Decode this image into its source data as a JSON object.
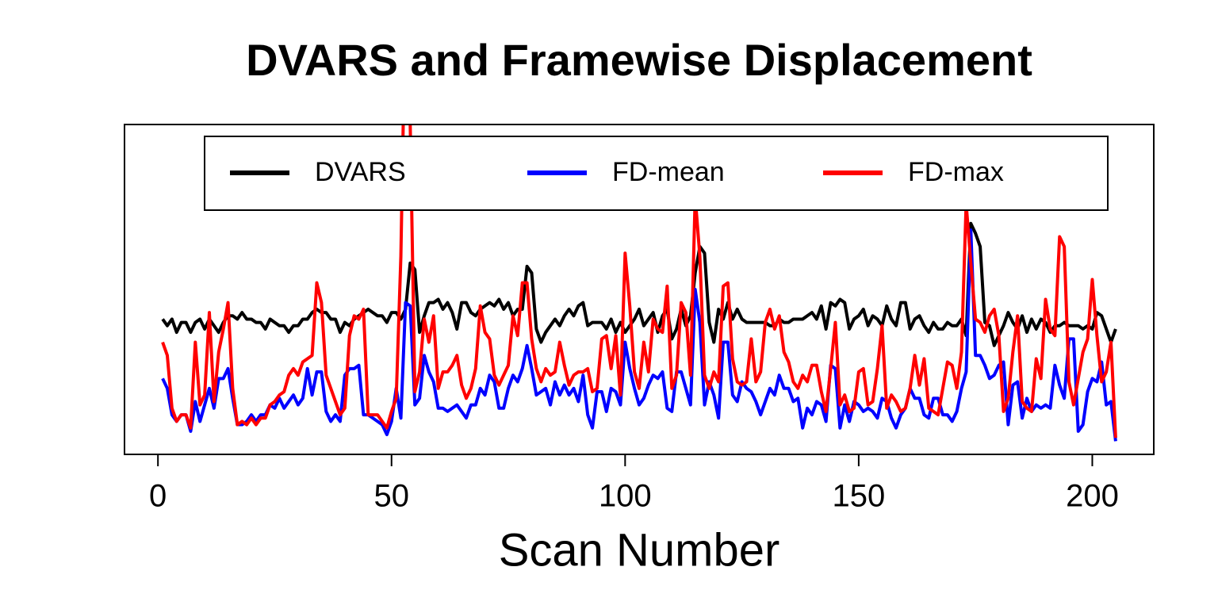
{
  "chart_data": {
    "type": "line",
    "title": "DVARS and Framewise Displacement",
    "x_label": "Scan Number",
    "x": [
      1,
      2,
      3,
      4,
      5,
      6,
      7,
      8,
      9,
      10,
      11,
      12,
      13,
      14,
      15,
      16,
      17,
      18,
      19,
      20,
      21,
      22,
      23,
      24,
      25,
      26,
      27,
      28,
      29,
      30,
      31,
      32,
      33,
      34,
      35,
      36,
      37,
      38,
      39,
      40,
      41,
      42,
      43,
      44,
      45,
      46,
      47,
      48,
      49,
      50,
      51,
      52,
      53,
      54,
      55,
      56,
      57,
      58,
      59,
      60,
      61,
      62,
      63,
      64,
      65,
      66,
      67,
      68,
      69,
      70,
      71,
      72,
      73,
      74,
      75,
      76,
      77,
      78,
      79,
      80,
      81,
      82,
      83,
      84,
      85,
      86,
      87,
      88,
      89,
      90,
      91,
      92,
      93,
      94,
      95,
      96,
      97,
      98,
      99,
      100,
      101,
      102,
      103,
      104,
      105,
      106,
      107,
      108,
      109,
      110,
      111,
      112,
      113,
      114,
      115,
      116,
      117,
      118,
      119,
      120,
      121,
      122,
      123,
      124,
      125,
      126,
      127,
      128,
      129,
      130,
      131,
      132,
      133,
      134,
      135,
      136,
      137,
      138,
      139,
      140,
      141,
      142,
      143,
      144,
      145,
      146,
      147,
      148,
      149,
      150,
      151,
      152,
      153,
      154,
      155,
      156,
      157,
      158,
      159,
      160,
      161,
      162,
      163,
      164,
      165,
      166,
      167,
      168,
      169,
      170,
      171,
      172,
      173,
      174,
      175,
      176,
      177,
      178,
      179,
      180,
      181,
      182,
      183,
      184,
      185,
      186,
      187,
      188,
      189,
      190,
      191,
      192,
      193,
      194,
      195,
      196,
      197,
      198,
      199,
      200,
      201,
      202,
      203,
      204,
      205
    ],
    "series": [
      {
        "name": "DVARS",
        "color": "#000000",
        "values": [
          41,
          39,
          41,
          37,
          40,
          40,
          37,
          40,
          41,
          38,
          41,
          39,
          37,
          40,
          42,
          42,
          41,
          43,
          41,
          41,
          40,
          40,
          38,
          41,
          40,
          39,
          39,
          37,
          39,
          39,
          41,
          41,
          43,
          44,
          43,
          43,
          41,
          41,
          37,
          40,
          39,
          41,
          42,
          43,
          44,
          43,
          42,
          42,
          40,
          43,
          43,
          41,
          44,
          58,
          56,
          37,
          42,
          46,
          46,
          47,
          44,
          46,
          43,
          38,
          46,
          46,
          43,
          42,
          44,
          45,
          46,
          45,
          47,
          44,
          46,
          42,
          44,
          44,
          57,
          55,
          38,
          34,
          37,
          39,
          41,
          39,
          42,
          44,
          42,
          45,
          46,
          39,
          40,
          40,
          40,
          38,
          41,
          37,
          40,
          37,
          39,
          41,
          44,
          39,
          41,
          43,
          37,
          42,
          44,
          35,
          38,
          44,
          39,
          42,
          55,
          63,
          61,
          40,
          34,
          44,
          41,
          46,
          41,
          44,
          41,
          40,
          40,
          40,
          40,
          40,
          39,
          39,
          41,
          40,
          40,
          41,
          41,
          41,
          42,
          43,
          41,
          45,
          38,
          46,
          45,
          47,
          46,
          38,
          41,
          42,
          44,
          39,
          42,
          41,
          39,
          45,
          41,
          39,
          46,
          46,
          38,
          41,
          42,
          39,
          37,
          40,
          38,
          38,
          40,
          39,
          39,
          41,
          36,
          70,
          67,
          63,
          40,
          39,
          33,
          36,
          39,
          43,
          40,
          38,
          42,
          37,
          41,
          38,
          41,
          40,
          37,
          39,
          39,
          40,
          39,
          39,
          39,
          38,
          39,
          38,
          43,
          42,
          38,
          34,
          38
        ]
      },
      {
        "name": "FD-mean",
        "color": "#0000ff",
        "values": [
          23,
          20,
          12,
          10,
          12,
          12,
          7,
          16,
          10,
          15,
          20,
          14,
          23,
          23,
          26,
          17,
          9,
          9,
          10,
          12,
          10,
          12,
          12,
          15,
          14,
          17,
          14,
          16,
          18,
          15,
          17,
          26,
          18,
          25,
          25,
          13,
          10,
          12,
          10,
          24,
          26,
          26,
          27,
          12,
          12,
          11,
          10,
          9,
          6,
          10,
          20,
          11,
          46,
          45,
          15,
          17,
          30,
          25,
          22,
          14,
          14,
          13,
          14,
          15,
          13,
          11,
          15,
          15,
          20,
          18,
          24,
          22,
          14,
          14,
          20,
          24,
          22,
          26,
          33,
          26,
          18,
          19,
          20,
          15,
          22,
          18,
          21,
          18,
          20,
          16,
          24,
          12,
          8,
          19,
          19,
          13,
          20,
          19,
          15,
          34,
          26,
          20,
          15,
          17,
          21,
          24,
          23,
          25,
          14,
          13,
          25,
          25,
          20,
          15,
          50,
          40,
          15,
          22,
          18,
          11,
          34,
          34,
          18,
          16,
          22,
          20,
          19,
          16,
          12,
          16,
          20,
          18,
          24,
          20,
          20,
          16,
          17,
          8,
          14,
          12,
          16,
          15,
          10,
          27,
          26,
          8,
          15,
          10,
          16,
          15,
          13,
          14,
          13,
          11,
          17,
          16,
          11,
          8,
          12,
          14,
          20,
          17,
          17,
          12,
          11,
          17,
          17,
          12,
          12,
          10,
          13,
          20,
          25,
          68,
          30,
          30,
          27,
          23,
          24,
          27,
          28,
          9,
          21,
          22,
          11,
          17,
          13,
          15,
          14,
          15,
          14,
          27,
          21,
          17,
          35,
          35,
          7,
          9,
          19,
          23,
          22,
          28,
          15,
          16,
          4
        ]
      },
      {
        "name": "FD-max",
        "color": "#ff0000",
        "values": [
          34,
          30,
          14,
          10,
          12,
          12,
          8,
          34,
          15,
          18,
          43,
          16,
          31,
          38,
          46,
          20,
          9,
          10,
          9,
          11,
          9,
          11,
          11,
          15,
          16,
          18,
          19,
          24,
          26,
          24,
          28,
          29,
          30,
          52,
          46,
          24,
          20,
          16,
          12,
          14,
          36,
          42,
          41,
          44,
          12,
          12,
          12,
          10,
          8,
          13,
          17,
          60,
          140,
          100,
          19,
          25,
          41,
          34,
          42,
          20,
          25,
          25,
          27,
          30,
          21,
          17,
          20,
          26,
          45,
          37,
          35,
          24,
          21,
          24,
          27,
          42,
          36,
          52,
          52,
          35,
          26,
          22,
          26,
          24,
          25,
          34,
          27,
          21,
          24,
          25,
          25,
          26,
          19,
          20,
          35,
          36,
          26,
          36,
          18,
          61,
          45,
          25,
          20,
          34,
          25,
          41,
          38,
          37,
          51,
          20,
          24,
          46,
          43,
          24,
          78,
          60,
          24,
          20,
          25,
          22,
          51,
          52,
          29,
          22,
          21,
          22,
          35,
          22,
          25,
          40,
          44,
          38,
          42,
          31,
          28,
          22,
          20,
          24,
          22,
          27,
          27,
          19,
          13,
          26,
          40,
          15,
          18,
          13,
          14,
          25,
          26,
          15,
          16,
          26,
          39,
          14,
          18,
          16,
          13,
          14,
          20,
          30,
          21,
          29,
          14,
          13,
          12,
          20,
          28,
          27,
          20,
          31,
          76,
          58,
          41,
          40,
          37,
          42,
          44,
          36,
          13,
          17,
          31,
          42,
          16,
          14,
          13,
          29,
          23,
          47,
          38,
          36,
          66,
          63,
          22,
          15,
          23,
          31,
          35,
          53,
          36,
          22,
          25,
          34,
          5
        ]
      }
    ],
    "xlim": [
      -7.16,
      213.16
    ],
    "xticks": [
      0,
      50,
      100,
      150,
      200
    ],
    "ylim": [
      0,
      100
    ]
  }
}
